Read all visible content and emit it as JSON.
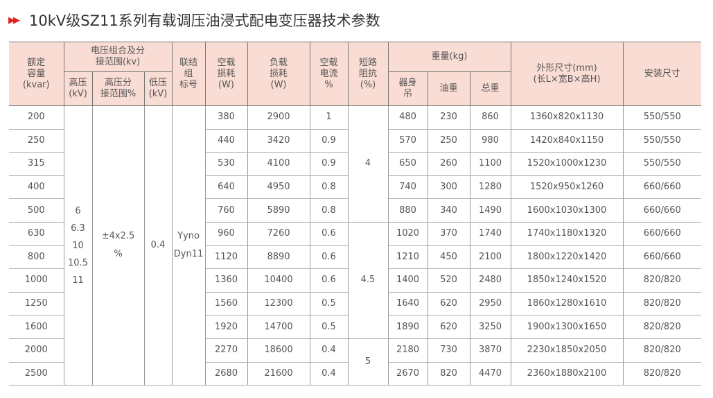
{
  "title": "10kV级SZ11系列有载调压油浸式配电变压器技术参数",
  "title_icon": "double-arrow-right-icon",
  "header": {
    "capacity": "额定\n容量\n(kvar)",
    "voltage_group": "电压组合及分\n接范围(kv)",
    "hv": "高压\n(kV)",
    "hv_tap": "高压分\n接范围%",
    "lv": "低压\n(kV)",
    "connection": "联结\n组\n标号",
    "noload_loss": "空载\n损耗\n(W)",
    "load_loss": "负载\n损耗\n(W)",
    "noload_current": "空载\n电流\n%",
    "impedance": "短路\n阻抗\n(%)",
    "weight": "重量(kg)",
    "body": "器身\n吊",
    "oil": "油重",
    "total": "总重",
    "dims": "外形尺寸(mm)\n(长L×宽B×高H)",
    "install": "安装尺寸"
  },
  "merged": {
    "hv_values": [
      "6",
      "6.3",
      "10",
      "10.5",
      "11"
    ],
    "hv_tap": "±4x2.5\n%",
    "lv": "0.4",
    "connection": "Yyno\nDyn11",
    "impedance": [
      "4",
      "4.5",
      "5"
    ]
  },
  "rows": [
    [
      "200",
      "380",
      "2900",
      "1",
      "480",
      "230",
      "860",
      "1360x820x1130",
      "550/550"
    ],
    [
      "250",
      "440",
      "3420",
      "0.9",
      "570",
      "250",
      "980",
      "1420x840x1150",
      "550/550"
    ],
    [
      "315",
      "530",
      "4100",
      "0.9",
      "650",
      "260",
      "1100",
      "1520x1000x1230",
      "550/550"
    ],
    [
      "400",
      "640",
      "4950",
      "0.8",
      "740",
      "300",
      "1280",
      "1520x950x1260",
      "660/660"
    ],
    [
      "500",
      "760",
      "5890",
      "0.8",
      "880",
      "340",
      "1490",
      "1600x1030x1300",
      "660/660"
    ],
    [
      "630",
      "960",
      "7260",
      "0.6",
      "1020",
      "370",
      "1740",
      "1740x1180x1320",
      "660/660"
    ],
    [
      "800",
      "1120",
      "8890",
      "0.6",
      "1210",
      "450",
      "2100",
      "1800x1220x1420",
      "660/660"
    ],
    [
      "1000",
      "1360",
      "10400",
      "0.6",
      "1400",
      "520",
      "2480",
      "1850x1240x1520",
      "820/820"
    ],
    [
      "1250",
      "1560",
      "12300",
      "0.5",
      "1640",
      "620",
      "2950",
      "1860x1280x1610",
      "820/820"
    ],
    [
      "1600",
      "1920",
      "14700",
      "0.5",
      "1890",
      "620",
      "3250",
      "1900x1300x1650",
      "820/820"
    ],
    [
      "2000",
      "2270",
      "18600",
      "0.4",
      "2180",
      "730",
      "3870",
      "2230x1850x2050",
      "820/820"
    ],
    [
      "2500",
      "2680",
      "21600",
      "0.4",
      "2670",
      "820",
      "4470",
      "2360x1880x2100",
      "820/820"
    ]
  ]
}
